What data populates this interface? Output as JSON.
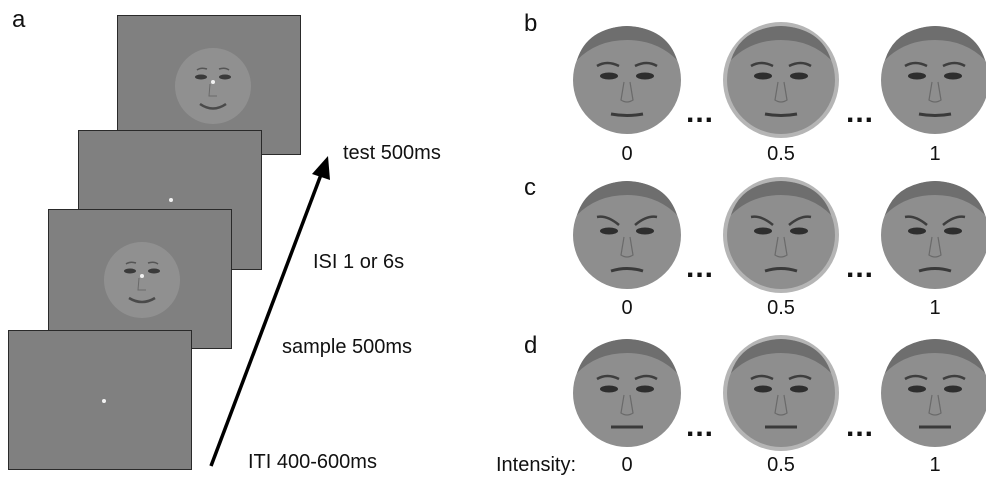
{
  "panels": {
    "a": "a",
    "b": "b",
    "c": "c",
    "d": "d"
  },
  "trial_labels": {
    "test": "test  500ms",
    "isi": "ISI  1 or 6s",
    "sample": "sample  500ms",
    "iti": "ITI  400-600ms"
  },
  "ellipsis": "...",
  "intensity_values": [
    "0",
    "0.5",
    "1"
  ],
  "intensity_label": "Intensity:",
  "colors": {
    "screen_gray": "#808080",
    "face_gray": "#8e8e8e",
    "highlight_ring": "#b5b5b5",
    "arrow": "#000000"
  }
}
